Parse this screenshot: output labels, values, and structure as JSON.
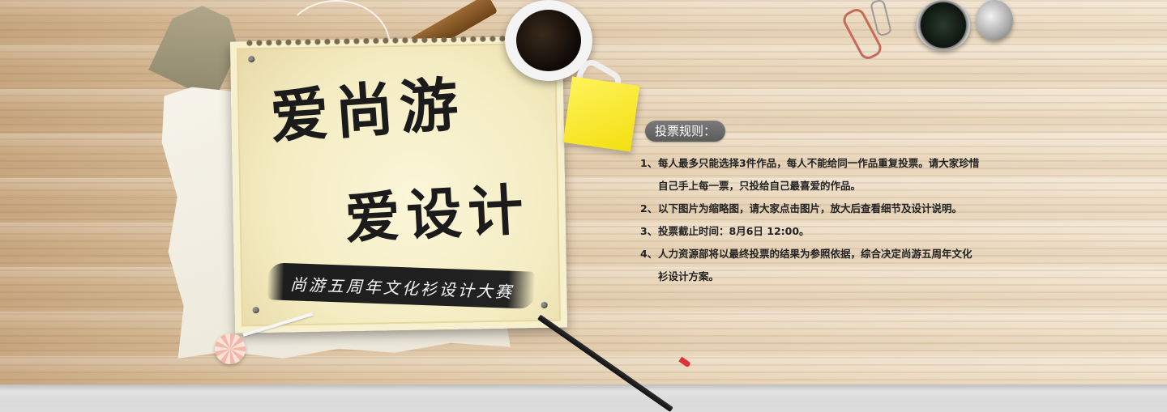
{
  "banner": {
    "title_line1": "爱尚游",
    "title_line2": "爱设计",
    "subtitle": "尚游五周年文化衫设计大赛"
  },
  "rules": {
    "heading": "投票规则：",
    "items": [
      {
        "num": "1、",
        "text": "每人最多只能选择3件作品，每人不能给同一作品重复投票。请大家珍惜自己手上每一票，只投给自己最喜爱的作品。"
      },
      {
        "num": "2、",
        "text": "以下图片为缩略图，请大家点击图片，放大后查看细节及设计说明。"
      },
      {
        "num": "3、",
        "text": "投票截止时间：8月6日 12:00。"
      },
      {
        "num": "4、",
        "text": "人力资源部将以最终投票的结果为参照依据，综合决定尚游五周年文化衫设计方案。"
      }
    ]
  },
  "colors": {
    "pill_bg": "#6b6b6b",
    "text": "#222222",
    "sticky": "#f7e622"
  }
}
